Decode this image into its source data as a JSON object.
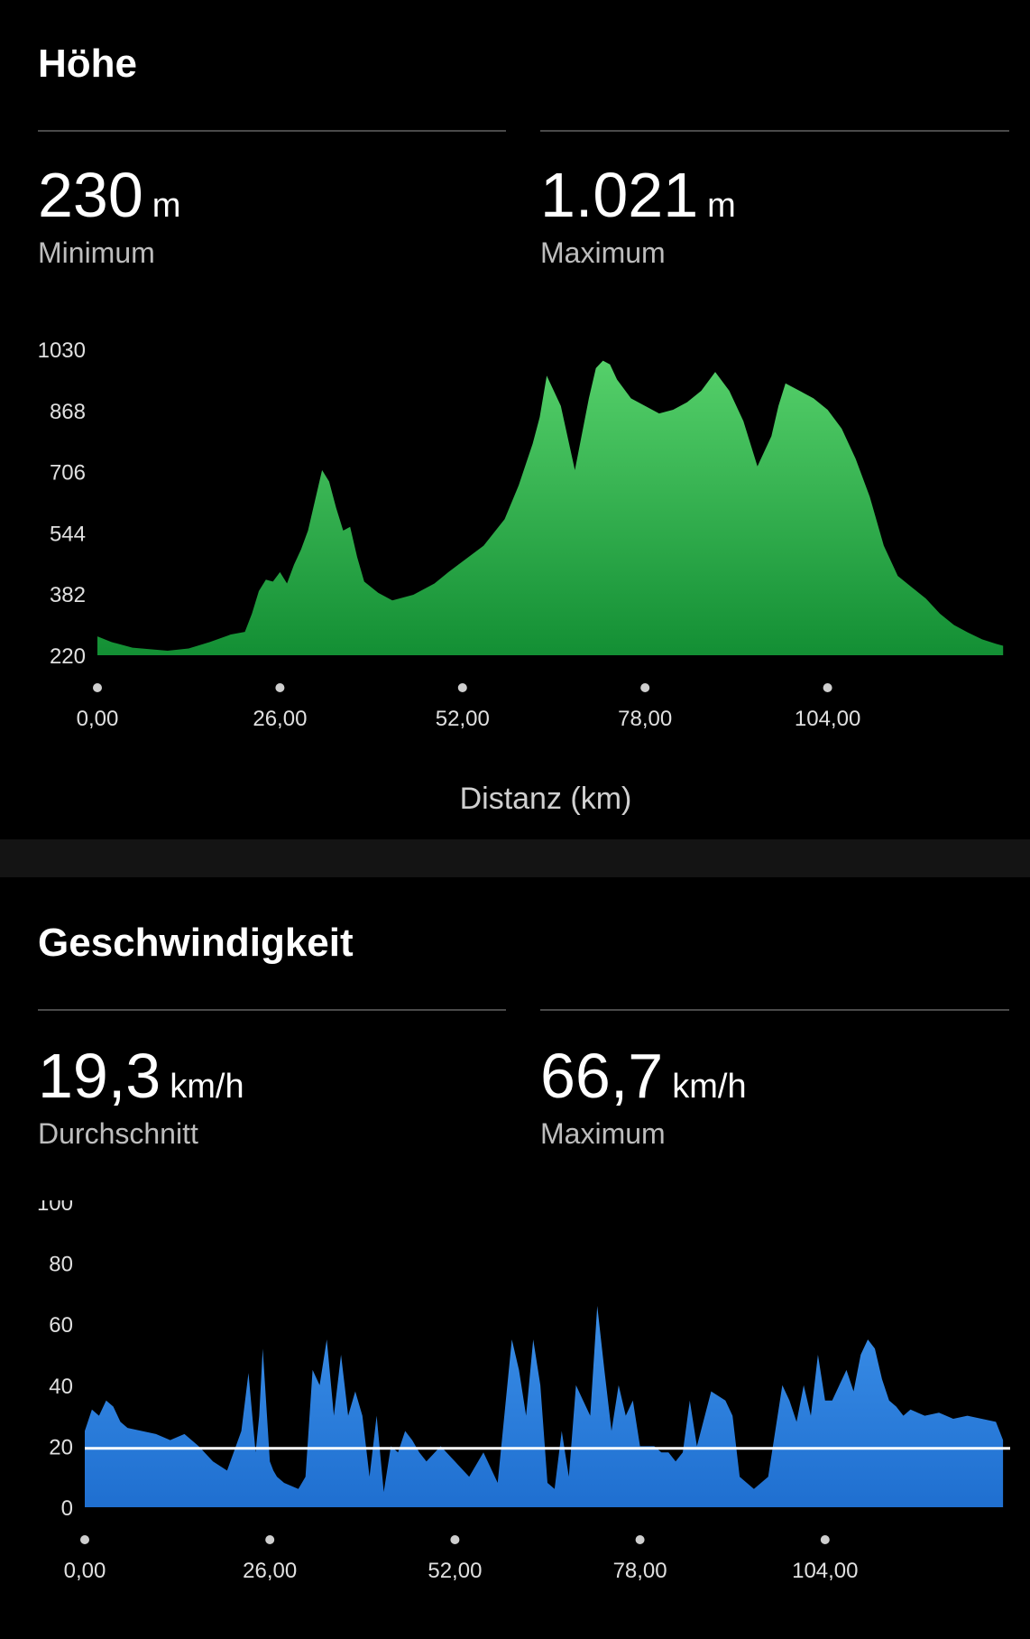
{
  "elevation": {
    "title": "Höhe",
    "min": {
      "value": "230",
      "unit": "m",
      "label": "Minimum"
    },
    "max": {
      "value": "1.021",
      "unit": "m",
      "label": "Maximum"
    }
  },
  "speed": {
    "title": "Geschwindigkeit",
    "avg": {
      "value": "19,3",
      "unit": "km/h",
      "label": "Durchschnitt"
    },
    "max": {
      "value": "66,7",
      "unit": "km/h",
      "label": "Maximum"
    }
  },
  "colors": {
    "elevation_fill": "#1f9e3f",
    "speed_fill": "#2c86e6",
    "avg_line": "#ffffff"
  },
  "chart_data": [
    {
      "type": "area",
      "xlabel": "Distanz (km)",
      "ylabel": "",
      "xlim": [
        0,
        130
      ],
      "ylim": [
        220,
        1030
      ],
      "yticks": [
        "1030",
        "868",
        "706",
        "544",
        "382",
        "220"
      ],
      "xticks": [
        "0,00",
        "26,00",
        "52,00",
        "78,00",
        "104,00"
      ],
      "x": [
        0,
        2,
        5,
        10,
        13,
        16,
        19,
        21,
        22,
        23,
        24,
        25,
        26,
        27,
        28,
        29,
        30,
        31,
        32,
        33,
        34,
        35,
        36,
        37,
        38,
        40,
        42,
        45,
        48,
        50,
        55,
        58,
        60,
        62,
        63,
        64,
        66,
        68,
        70,
        71,
        72,
        73,
        74,
        76,
        78,
        80,
        82,
        84,
        86,
        88,
        90,
        92,
        94,
        96,
        97,
        98,
        100,
        102,
        104,
        106,
        108,
        110,
        112,
        114,
        116,
        118,
        120,
        122,
        124,
        126,
        128,
        129
      ],
      "series": [
        {
          "values": [
            270,
            255,
            240,
            232,
            238,
            255,
            275,
            282,
            330,
            390,
            420,
            415,
            440,
            410,
            460,
            500,
            550,
            630,
            710,
            680,
            610,
            550,
            560,
            480,
            415,
            385,
            365,
            380,
            410,
            440,
            510,
            580,
            670,
            780,
            850,
            960,
            880,
            710,
            900,
            980,
            1000,
            990,
            950,
            900,
            880,
            860,
            870,
            890,
            920,
            970,
            920,
            840,
            720,
            800,
            880,
            940,
            920,
            900,
            870,
            820,
            740,
            640,
            510,
            430,
            400,
            370,
            330,
            300,
            280,
            262,
            250,
            245
          ]
        }
      ]
    },
    {
      "type": "area",
      "xlabel": "",
      "ylabel": "",
      "xlim": [
        0,
        130
      ],
      "ylim": [
        0,
        100
      ],
      "yticks": [
        "100",
        "80",
        "60",
        "40",
        "20",
        "0"
      ],
      "xticks": [
        "0,00",
        "26,00",
        "52,00",
        "78,00",
        "104,00"
      ],
      "average": 19.3,
      "x": [
        0,
        1,
        2,
        3,
        4,
        5,
        6,
        8,
        10,
        12,
        14,
        16,
        18,
        20,
        22,
        23,
        24,
        24.5,
        25,
        26,
        26.5,
        27,
        28,
        30,
        31,
        32,
        33,
        34,
        35,
        36,
        36.5,
        37,
        38,
        39,
        40,
        41,
        42,
        43,
        44,
        45,
        46,
        47,
        48,
        50,
        52,
        54,
        56,
        58,
        60,
        61,
        62,
        63,
        64,
        65,
        66,
        67,
        68,
        69,
        70,
        71,
        72,
        73,
        74,
        75,
        76,
        77,
        78,
        79,
        80,
        81,
        82,
        83,
        84,
        85,
        86,
        88,
        90,
        91,
        92,
        93,
        94,
        96,
        98,
        99,
        100,
        101,
        102,
        103,
        104,
        105,
        106,
        107,
        108,
        109,
        110,
        111,
        112,
        113,
        114,
        115,
        116,
        118,
        120,
        122,
        124,
        126,
        128,
        129
      ],
      "series": [
        {
          "values": [
            25,
            32,
            30,
            35,
            33,
            28,
            26,
            25,
            24,
            22,
            24,
            20,
            15,
            12,
            25,
            44,
            18,
            30,
            52,
            15,
            12,
            10,
            8,
            6,
            10,
            45,
            40,
            55,
            30,
            50,
            40,
            30,
            38,
            30,
            10,
            30,
            5,
            20,
            18,
            25,
            22,
            18,
            15,
            20,
            15,
            10,
            18,
            8,
            55,
            45,
            30,
            55,
            40,
            8,
            6,
            25,
            10,
            40,
            35,
            30,
            66,
            45,
            25,
            40,
            30,
            35,
            20,
            20,
            20,
            18,
            18,
            15,
            18,
            35,
            20,
            38,
            35,
            30,
            10,
            8,
            6,
            10,
            40,
            35,
            28,
            40,
            30,
            50,
            35,
            35,
            40,
            45,
            38,
            50,
            55,
            52,
            42,
            35,
            33,
            30,
            32,
            30,
            31,
            29,
            30,
            29,
            28,
            22
          ]
        }
      ]
    }
  ]
}
